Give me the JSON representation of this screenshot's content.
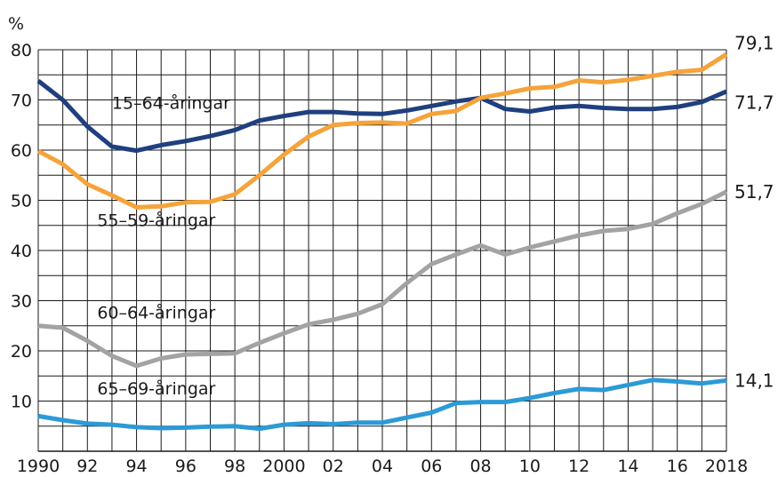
{
  "chart_data": {
    "type": "line",
    "ylabel": "%",
    "ylim": [
      0,
      80
    ],
    "yticks": [
      "10",
      "20",
      "30",
      "40",
      "50",
      "60",
      "70",
      "80"
    ],
    "xlim": [
      1990,
      2018
    ],
    "xtick_labels": [
      {
        "x": 1990,
        "label": "1990"
      },
      {
        "x": 1992,
        "label": "92"
      },
      {
        "x": 1994,
        "label": "94"
      },
      {
        "x": 1996,
        "label": "96"
      },
      {
        "x": 1998,
        "label": "98"
      },
      {
        "x": 2000,
        "label": "2000"
      },
      {
        "x": 2002,
        "label": "02"
      },
      {
        "x": 2004,
        "label": "04"
      },
      {
        "x": 2006,
        "label": "06"
      },
      {
        "x": 2008,
        "label": "08"
      },
      {
        "x": 2010,
        "label": "10"
      },
      {
        "x": 2012,
        "label": "12"
      },
      {
        "x": 2014,
        "label": "14"
      },
      {
        "x": 2016,
        "label": "16"
      },
      {
        "x": 2018,
        "label": "2018"
      }
    ],
    "grid": true,
    "x": [
      1990,
      1991,
      1992,
      1993,
      1994,
      1995,
      1996,
      1997,
      1998,
      1999,
      2000,
      2001,
      2002,
      2003,
      2004,
      2005,
      2006,
      2007,
      2008,
      2009,
      2010,
      2011,
      2012,
      2013,
      2014,
      2015,
      2016,
      2017,
      2018
    ],
    "series": [
      {
        "name": "15–64-åringar",
        "color": "#1f3f7f",
        "end_label": "71,7",
        "values": [
          73.8,
          70.0,
          64.7,
          60.7,
          59.9,
          61.0,
          61.8,
          62.8,
          64.0,
          65.9,
          66.8,
          67.6,
          67.6,
          67.3,
          67.2,
          67.9,
          68.8,
          69.7,
          70.4,
          68.2,
          67.7,
          68.5,
          68.8,
          68.4,
          68.2,
          68.2,
          68.6,
          69.6,
          71.7
        ]
      },
      {
        "name": "55–59-åringar",
        "color": "#f5a33a",
        "end_label": "79,1",
        "values": [
          59.8,
          57.2,
          53.2,
          51.0,
          48.6,
          48.8,
          49.6,
          49.7,
          51.2,
          55.0,
          59.1,
          62.7,
          65.0,
          65.4,
          65.5,
          65.3,
          67.2,
          67.8,
          70.4,
          71.3,
          72.3,
          72.6,
          73.9,
          73.5,
          74.0,
          74.8,
          75.6,
          76.0,
          79.1
        ]
      },
      {
        "name": "60–64-åringar",
        "color": "#a3a3a3",
        "end_label": "51,7",
        "values": [
          25.0,
          24.6,
          22.0,
          19.0,
          17.0,
          18.5,
          19.3,
          19.4,
          19.5,
          21.6,
          23.5,
          25.3,
          26.2,
          27.4,
          29.3,
          33.5,
          37.3,
          39.2,
          41.0,
          39.2,
          40.6,
          41.8,
          43.0,
          43.9,
          44.3,
          45.3,
          47.4,
          49.3,
          51.7
        ]
      },
      {
        "name": "65–69-åringar",
        "color": "#2c9ad6",
        "end_label": "14,1",
        "values": [
          7.0,
          6.2,
          5.5,
          5.3,
          4.8,
          4.6,
          4.7,
          4.9,
          5.0,
          4.5,
          5.3,
          5.6,
          5.4,
          5.7,
          5.7,
          6.7,
          7.7,
          9.6,
          9.8,
          9.8,
          10.6,
          11.6,
          12.4,
          12.2,
          13.2,
          14.2,
          13.9,
          13.5,
          14.1
        ]
      }
    ]
  }
}
